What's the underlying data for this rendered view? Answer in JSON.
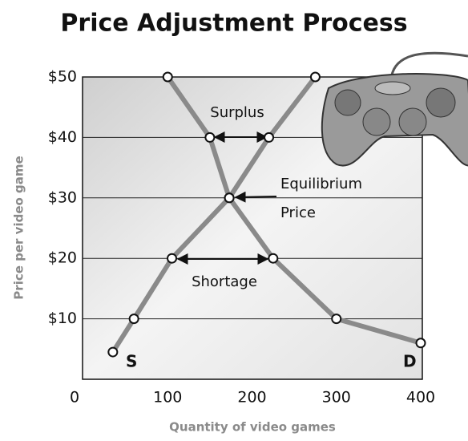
{
  "chart_data": {
    "type": "line",
    "title": "Price Adjustment Process",
    "xlabel": "Quantity of video games",
    "ylabel": "Price per video game",
    "xlim": [
      0,
      400
    ],
    "ylim": [
      0,
      50
    ],
    "xticks": [
      0,
      100,
      200,
      300,
      400
    ],
    "yticks": [
      {
        "value": 10,
        "label": "$10"
      },
      {
        "value": 20,
        "label": "$20"
      },
      {
        "value": 30,
        "label": "$30"
      },
      {
        "value": 40,
        "label": "$40"
      },
      {
        "value": 50,
        "label": "$50"
      }
    ],
    "grid": true,
    "series": [
      {
        "name": "S",
        "color": "#8a8a8a",
        "x": [
          35,
          60,
          105,
          173,
          220,
          275
        ],
        "values": [
          4.5,
          10,
          20,
          30,
          40,
          50
        ]
      },
      {
        "name": "D",
        "color": "#8a8a8a",
        "x": [
          100,
          150,
          173,
          225,
          300,
          400
        ],
        "values": [
          50,
          40,
          30,
          20,
          10,
          6
        ]
      }
    ],
    "annotations": [
      "Surplus",
      "Equilibrium",
      "Price",
      "Shortage"
    ]
  }
}
